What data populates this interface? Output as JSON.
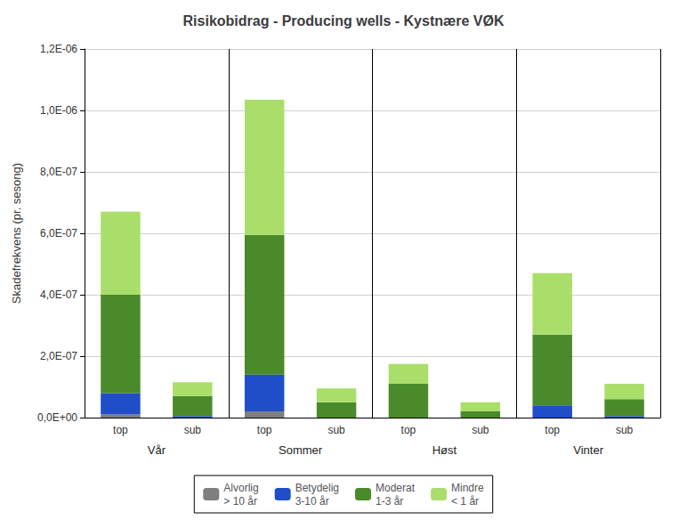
{
  "chart_data": {
    "type": "bar",
    "title": "Risikobidrag - Producing wells - Kystnære VØK",
    "ylabel": "Skadefrekvens (pr. sesong)",
    "categories": [
      "top",
      "sub",
      "top",
      "sub",
      "top",
      "sub",
      "top",
      "sub"
    ],
    "groups": [
      "Vår",
      "Sommer",
      "Høst",
      "Vinter"
    ],
    "series": [
      {
        "name": "Alvorlig\n> 10 år",
        "color": "#7f7f7f",
        "values": [
          1e-08,
          0.0,
          2e-08,
          0.0,
          0.0,
          0.0,
          0.0,
          0.0
        ]
      },
      {
        "name": "Betydelig\n3-10 år",
        "color": "#1f4ec8",
        "values": [
          7e-08,
          5e-09,
          1.2e-07,
          0.0,
          0.0,
          0.0,
          4e-08,
          5e-09
        ]
      },
      {
        "name": "Moderat\n1-3 år",
        "color": "#4a8a2a",
        "values": [
          3.2e-07,
          6.5e-08,
          4.55e-07,
          5e-08,
          1.1e-07,
          2e-08,
          2.3e-07,
          5.5e-08
        ]
      },
      {
        "name": "Mindre\n< 1 år",
        "color": "#aade6a",
        "values": [
          2.7e-07,
          4.5e-08,
          4.4e-07,
          4.5e-08,
          6.5e-08,
          3e-08,
          2e-07,
          5e-08
        ]
      }
    ],
    "ylim": [
      0,
      1.2e-06
    ],
    "yticks": [
      {
        "value": 0,
        "label": "0,0E+00"
      },
      {
        "value": 2e-07,
        "label": "2,0E-07"
      },
      {
        "value": 4e-07,
        "label": "4,0E-07"
      },
      {
        "value": 6e-07,
        "label": "6,0E-07"
      },
      {
        "value": 8e-07,
        "label": "8,0E-07"
      },
      {
        "value": 1e-06,
        "label": "1,0E-06"
      },
      {
        "value": 1.2e-06,
        "label": "1,2E-06"
      }
    ],
    "stacked": true,
    "grid": true,
    "legend": "bottom"
  }
}
